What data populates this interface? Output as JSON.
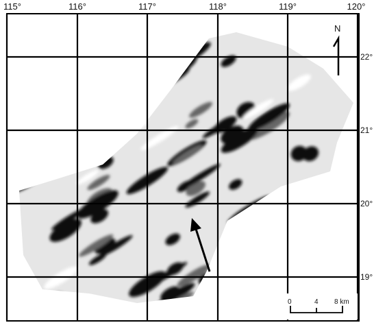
{
  "longitude_labels": [
    "115°",
    "116°",
    "117°",
    "118°",
    "119°",
    "120°"
  ],
  "latitude_labels": [
    "22°",
    "21°",
    "20°",
    "19°"
  ],
  "north_label": "N",
  "scale_bar": {
    "labels": [
      "0",
      "4",
      "8 km"
    ]
  }
}
